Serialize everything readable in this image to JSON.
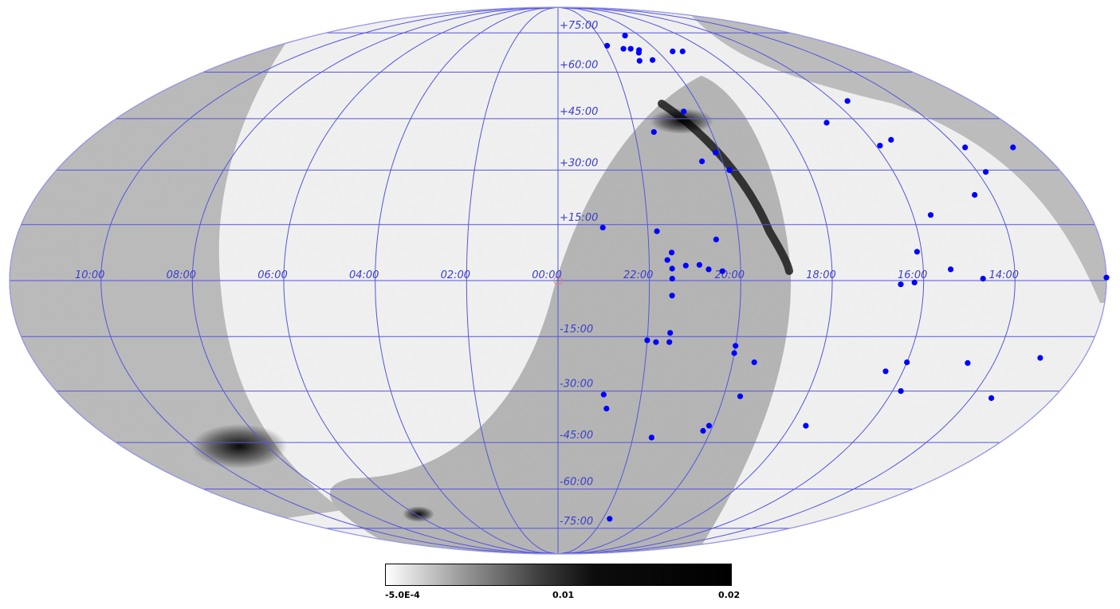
{
  "colors": {
    "grid": "#5555dd",
    "source": "#0000ff",
    "map_background": "#f4f4f4",
    "coverage": "#b3b3b3"
  },
  "grid": {
    "ra_labels": [
      "10:00",
      "08:00",
      "06:00",
      "04:00",
      "02:00",
      "00:00",
      "22:00",
      "20:00",
      "18:00",
      "16:00",
      "14:00"
    ],
    "dec_labels": [
      "+75:00",
      "+60:00",
      "+45:00",
      "+30:00",
      "+15:00",
      "00:00",
      "-15:00",
      "-30:00",
      "-45:00",
      "-60:00",
      "-75:00"
    ]
  },
  "colorbar": {
    "min_label": "-5.0E-4",
    "mid_label": "0.01",
    "max_label": "0.02",
    "min": -0.0005,
    "mid": 0.01,
    "max": 0.02,
    "colormap": "white-to-black"
  },
  "sources": [
    [
      -11.4,
      36.5
    ],
    [
      -10.2,
      36.5
    ],
    [
      -8.5,
      38.7
    ],
    [
      -8.1,
      37.0
    ],
    [
      -7.2,
      43.8
    ],
    [
      -9.6,
      23.1
    ],
    [
      -8.4,
      17.6
    ],
    [
      -7.9,
      7.7
    ],
    [
      -8.6,
      3.0
    ],
    [
      -9.3,
      0.5
    ],
    [
      -7.8,
      -0.5
    ],
    [
      -7.5,
      -1.0
    ],
    [
      -11.0,
      -20.8
    ],
    [
      -9.4,
      -22.2
    ],
    [
      -8.0,
      -22.0
    ],
    [
      -7.6,
      -24.5
    ],
    [
      -8.2,
      -30.0
    ],
    [
      -10.5,
      -32.0
    ],
    [
      -6.4,
      -40.0
    ],
    [
      -3.5,
      64.3
    ],
    [
      -2.1,
      69.7
    ],
    [
      -3.5,
      47.2
    ],
    [
      -1.1,
      -31.0
    ],
    [
      -1.2,
      -35.0
    ],
    [
      -1.0,
      14.2
    ],
    [
      -2.2,
      13.2
    ],
    [
      -2.4,
      5.5
    ],
    [
      -2.5,
      3.2
    ],
    [
      -2.5,
      7.5
    ],
    [
      -2.5,
      0.5
    ],
    [
      -2.5,
      -4.0
    ],
    [
      -2.5,
      -14.0
    ],
    [
      -2.5,
      -16.5
    ],
    [
      -2.0,
      -16.0
    ],
    [
      -2.2,
      -16.5
    ],
    [
      -2.5,
      -43.5
    ],
    [
      -2.3,
      -71.0
    ],
    [
      -2.5,
      41.0
    ],
    [
      -2.8,
      4.0
    ],
    [
      -3.1,
      4.2
    ],
    [
      -3.3,
      3.0
    ],
    [
      -3.6,
      2.5
    ],
    [
      -3.5,
      11.0
    ],
    [
      -3.9,
      35.0
    ],
    [
      -3.5,
      32.5
    ],
    [
      -4.1,
      30.0
    ],
    [
      -4.0,
      -17.5
    ],
    [
      -4.0,
      -19.5
    ],
    [
      -3.9,
      -40.0
    ],
    [
      -3.8,
      -41.5
    ],
    [
      -4.5,
      -22.0
    ],
    [
      -4.4,
      -31.5
    ],
    [
      -3.3,
      73.8
    ],
    [
      -3.3,
      68.0
    ],
    [
      -3.2,
      67.0
    ],
    [
      -3.0,
      68.5
    ],
    [
      -2.7,
      68.5
    ],
    [
      -3.0,
      64.0
    ],
    [
      -4.6,
      67.5
    ],
    [
      -5.0,
      67.5
    ],
    [
      -8.4,
      50.5
    ],
    [
      -10.2,
      29.5
    ],
    [
      -12.0,
      0.8
    ]
  ]
}
